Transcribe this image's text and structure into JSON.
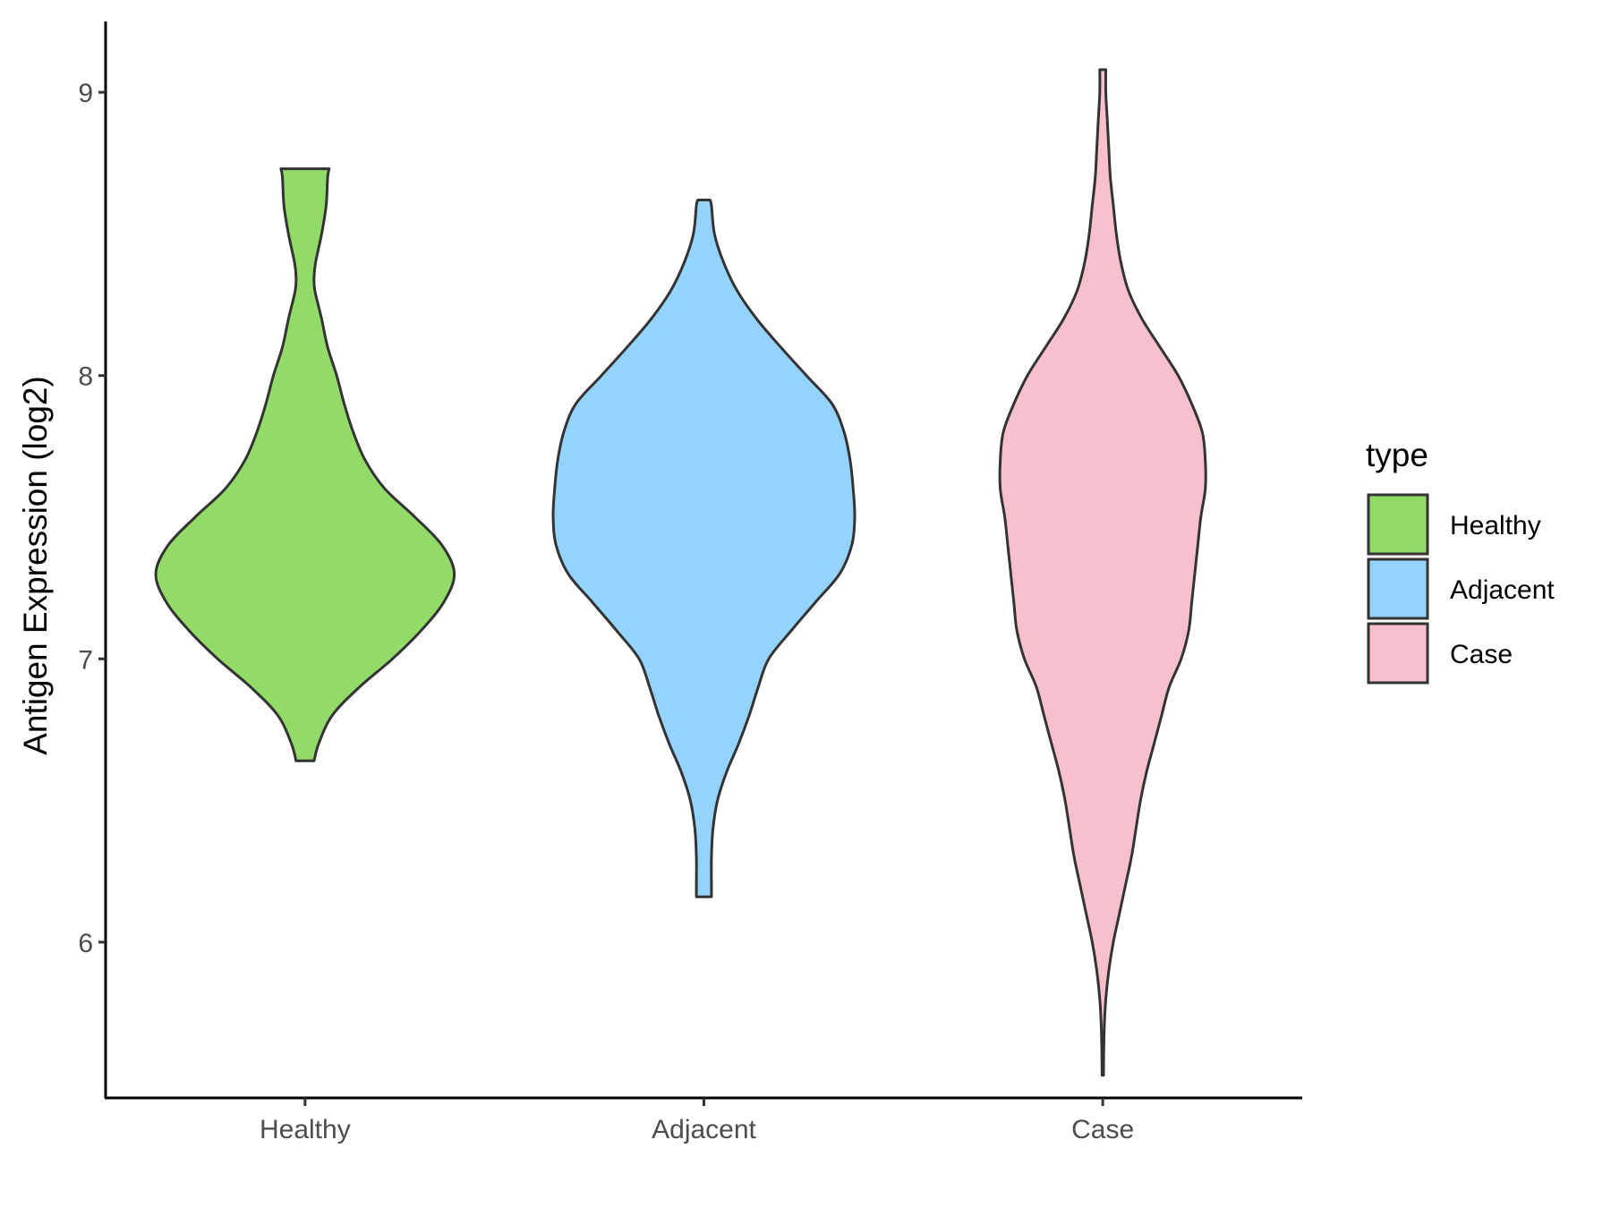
{
  "chart_data": {
    "type": "violin",
    "title": "",
    "xlabel": "",
    "ylabel": "Antigen Expression (log2)",
    "ylim": [
      5.45,
      9.25
    ],
    "yticks": [
      6,
      7,
      8,
      9
    ],
    "ytick_labels": [
      "6",
      "7",
      "8",
      "9"
    ],
    "categories": [
      "Healthy",
      "Adjacent",
      "Case"
    ],
    "grid": false,
    "legend": {
      "title": "type",
      "position": "right",
      "entries": [
        "Healthy",
        "Adjacent",
        "Case"
      ]
    },
    "series": [
      {
        "name": "Healthy",
        "color": "#93DB69",
        "min": 6.64,
        "max": 8.73,
        "density": [
          [
            6.64,
            0.06
          ],
          [
            6.7,
            0.09
          ],
          [
            6.8,
            0.18
          ],
          [
            6.9,
            0.36
          ],
          [
            7.0,
            0.58
          ],
          [
            7.1,
            0.77
          ],
          [
            7.2,
            0.92
          ],
          [
            7.3,
            0.99
          ],
          [
            7.4,
            0.91
          ],
          [
            7.5,
            0.73
          ],
          [
            7.6,
            0.53
          ],
          [
            7.7,
            0.4
          ],
          [
            7.8,
            0.32
          ],
          [
            7.9,
            0.26
          ],
          [
            8.0,
            0.21
          ],
          [
            8.1,
            0.15
          ],
          [
            8.2,
            0.11
          ],
          [
            8.3,
            0.065
          ],
          [
            8.35,
            0.06
          ],
          [
            8.4,
            0.07
          ],
          [
            8.5,
            0.11
          ],
          [
            8.6,
            0.14
          ],
          [
            8.7,
            0.15
          ],
          [
            8.73,
            0.16
          ]
        ]
      },
      {
        "name": "Adjacent",
        "color": "#94D3FE",
        "min": 6.16,
        "max": 8.62,
        "density": [
          [
            6.16,
            0.05
          ],
          [
            6.2,
            0.05
          ],
          [
            6.3,
            0.05
          ],
          [
            6.4,
            0.06
          ],
          [
            6.5,
            0.09
          ],
          [
            6.6,
            0.15
          ],
          [
            6.7,
            0.23
          ],
          [
            6.8,
            0.3
          ],
          [
            6.9,
            0.36
          ],
          [
            7.0,
            0.43
          ],
          [
            7.1,
            0.58
          ],
          [
            7.2,
            0.74
          ],
          [
            7.3,
            0.9
          ],
          [
            7.4,
            0.98
          ],
          [
            7.5,
            1.0
          ],
          [
            7.6,
            0.99
          ],
          [
            7.7,
            0.97
          ],
          [
            7.8,
            0.93
          ],
          [
            7.9,
            0.85
          ],
          [
            8.0,
            0.68
          ],
          [
            8.1,
            0.51
          ],
          [
            8.2,
            0.35
          ],
          [
            8.3,
            0.22
          ],
          [
            8.4,
            0.13
          ],
          [
            8.5,
            0.07
          ],
          [
            8.6,
            0.05
          ],
          [
            8.62,
            0.04
          ]
        ]
      },
      {
        "name": "Case",
        "color": "#F7C0CC",
        "min": 5.53,
        "max": 9.08,
        "density": [
          [
            5.53,
            0.005
          ],
          [
            5.6,
            0.006
          ],
          [
            5.7,
            0.01
          ],
          [
            5.8,
            0.02
          ],
          [
            5.9,
            0.04
          ],
          [
            6.0,
            0.07
          ],
          [
            6.1,
            0.11
          ],
          [
            6.2,
            0.15
          ],
          [
            6.3,
            0.19
          ],
          [
            6.4,
            0.22
          ],
          [
            6.5,
            0.25
          ],
          [
            6.6,
            0.29
          ],
          [
            6.7,
            0.34
          ],
          [
            6.8,
            0.39
          ],
          [
            6.9,
            0.44
          ],
          [
            7.0,
            0.52
          ],
          [
            7.1,
            0.57
          ],
          [
            7.2,
            0.59
          ],
          [
            7.3,
            0.61
          ],
          [
            7.4,
            0.63
          ],
          [
            7.5,
            0.65
          ],
          [
            7.6,
            0.68
          ],
          [
            7.7,
            0.68
          ],
          [
            7.8,
            0.66
          ],
          [
            7.9,
            0.59
          ],
          [
            8.0,
            0.5
          ],
          [
            8.1,
            0.38
          ],
          [
            8.2,
            0.26
          ],
          [
            8.3,
            0.17
          ],
          [
            8.4,
            0.12
          ],
          [
            8.5,
            0.09
          ],
          [
            8.6,
            0.07
          ],
          [
            8.7,
            0.05
          ],
          [
            8.8,
            0.04
          ],
          [
            8.9,
            0.03
          ],
          [
            9.0,
            0.02
          ],
          [
            9.08,
            0.02
          ]
        ]
      }
    ]
  },
  "style": {
    "outline_color": "#333333",
    "axis_color": "#000000"
  }
}
